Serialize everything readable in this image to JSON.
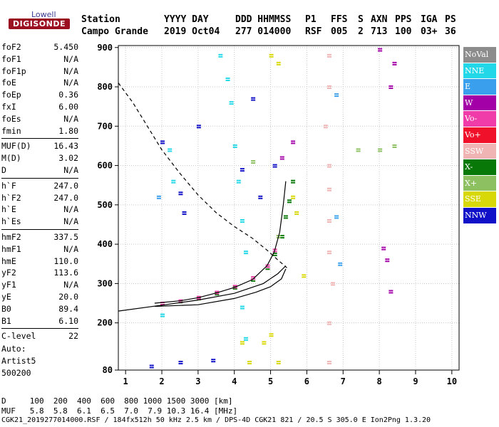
{
  "logo": {
    "top": "Lowell",
    "main": "DIGISONDE"
  },
  "header": {
    "labels": [
      "Station",
      "YYYY DAY",
      "DDD HHMMSS",
      "P1",
      "FFS",
      "S",
      "AXN",
      "PPS",
      "IGA",
      "PS"
    ],
    "values": [
      "Campo Grande",
      "2019 Oct04",
      "277 014000",
      "RSF",
      "005",
      "2",
      "713",
      "100",
      "03+",
      "36"
    ]
  },
  "params": [
    [
      {
        "k": "foF2",
        "v": "5.450"
      },
      {
        "k": "foF1",
        "v": "N/A"
      },
      {
        "k": "foF1p",
        "v": "N/A"
      },
      {
        "k": "foE",
        "v": "N/A"
      },
      {
        "k": "foEp",
        "v": "0.36"
      },
      {
        "k": "fxI",
        "v": "6.00"
      },
      {
        "k": "foEs",
        "v": "N/A"
      },
      {
        "k": "fmin",
        "v": "1.80"
      }
    ],
    [
      {
        "k": "MUF(D)",
        "v": "16.43"
      },
      {
        "k": "M(D)",
        "v": "3.02"
      },
      {
        "k": "D",
        "v": "N/A"
      }
    ],
    [
      {
        "k": "h`F",
        "v": "247.0"
      },
      {
        "k": "h`F2",
        "v": "247.0"
      },
      {
        "k": "h`E",
        "v": "N/A"
      },
      {
        "k": "h`Es",
        "v": "N/A"
      }
    ],
    [
      {
        "k": "hmF2",
        "v": "337.5"
      },
      {
        "k": "hmF1",
        "v": "N/A"
      },
      {
        "k": "hmE",
        "v": "110.0"
      },
      {
        "k": "yF2",
        "v": "113.6"
      },
      {
        "k": "yF1",
        "v": "N/A"
      },
      {
        "k": "yE",
        "v": "20.0"
      },
      {
        "k": "B0",
        "v": "89.4"
      },
      {
        "k": "B1",
        "v": "6.10"
      }
    ],
    [
      {
        "k": "C-level",
        "v": "22"
      }
    ]
  ],
  "auto": {
    "line1": "Auto:",
    "line2": "Artist5",
    "line3": "500200"
  },
  "legend": [
    {
      "label": "NoVal",
      "color": "#8c8c8c"
    },
    {
      "label": "NNE",
      "color": "#22d8e8"
    },
    {
      "label": "E",
      "color": "#3aa0ee"
    },
    {
      "label": "W",
      "color": "#a300a8"
    },
    {
      "label": "Vo-",
      "color": "#f03ca8"
    },
    {
      "label": "Vo+",
      "color": "#f0102a"
    },
    {
      "label": "SSW",
      "color": "#f0b4b4"
    },
    {
      "label": "X-",
      "color": "#087808"
    },
    {
      "label": "X+",
      "color": "#8cc060"
    },
    {
      "label": "SSE",
      "color": "#d8d808"
    },
    {
      "label": "NNW",
      "color": "#1010c8"
    }
  ],
  "bottom": {
    "line1": "D     100  200  400  600  800 1000 1500 3000 [km]",
    "line2": "MUF   5.8  5.8  6.1  6.5  7.0  7.9 10.3 16.4 [MHz]",
    "line3": "CGK21_2019277014000.RSF / 184fx512h 50 kHz 2.5 km / DPS-4D CGK21 821 / 20.5 S 305.0 E Ion2Png 1.3.20"
  },
  "chart_data": {
    "type": "scatter",
    "title": "",
    "xlabel": "",
    "ylabel": "",
    "xlim": [
      0.8,
      10.2
    ],
    "ylim": [
      80,
      905
    ],
    "x_ticks": [
      "1",
      "2",
      "3",
      "4",
      "5",
      "6",
      "7",
      "8",
      "9",
      "10"
    ],
    "y_ticks": [
      "80",
      "200",
      "300",
      "400",
      "500",
      "600",
      "700",
      "800",
      "900"
    ],
    "grid": true,
    "legend_position": "right",
    "series": [
      {
        "name": "X-",
        "points": [
          [
            2.0,
            250
          ],
          [
            2.5,
            255
          ],
          [
            3.0,
            263
          ],
          [
            3.5,
            275
          ],
          [
            4.0,
            290
          ],
          [
            4.5,
            310
          ],
          [
            4.9,
            340
          ],
          [
            5.1,
            375
          ],
          [
            5.3,
            420
          ],
          [
            5.4,
            470
          ],
          [
            5.5,
            510
          ],
          [
            5.6,
            560
          ]
        ]
      },
      {
        "name": "Vo-",
        "points": [
          [
            2.0,
            250
          ],
          [
            2.5,
            256
          ],
          [
            3.0,
            265
          ],
          [
            3.5,
            278
          ],
          [
            4.0,
            293
          ],
          [
            4.5,
            315
          ],
          [
            4.9,
            345
          ],
          [
            5.1,
            385
          ]
        ]
      },
      {
        "name": "SSE",
        "points": [
          [
            4.8,
            150
          ],
          [
            5.0,
            170
          ],
          [
            5.2,
            100
          ],
          [
            5.0,
            880
          ],
          [
            5.2,
            860
          ],
          [
            5.6,
            520
          ],
          [
            5.7,
            480
          ],
          [
            5.9,
            320
          ],
          [
            4.2,
            150
          ],
          [
            4.4,
            100
          ]
        ]
      },
      {
        "name": "NNE",
        "points": [
          [
            3.6,
            880
          ],
          [
            3.8,
            820
          ],
          [
            3.9,
            760
          ],
          [
            4.0,
            650
          ],
          [
            4.1,
            560
          ],
          [
            4.2,
            460
          ],
          [
            4.3,
            380
          ],
          [
            4.2,
            240
          ],
          [
            4.3,
            160
          ],
          [
            2.2,
            640
          ],
          [
            2.3,
            560
          ],
          [
            2.0,
            220
          ]
        ]
      },
      {
        "name": "SSW",
        "points": [
          [
            6.6,
            880
          ],
          [
            6.6,
            800
          ],
          [
            6.5,
            700
          ],
          [
            6.6,
            600
          ],
          [
            6.6,
            540
          ],
          [
            6.6,
            460
          ],
          [
            6.6,
            380
          ],
          [
            6.7,
            300
          ],
          [
            6.6,
            200
          ],
          [
            6.6,
            100
          ]
        ]
      },
      {
        "name": "NNW",
        "points": [
          [
            2.0,
            660
          ],
          [
            3.0,
            700
          ],
          [
            4.5,
            770
          ],
          [
            2.5,
            530
          ],
          [
            4.2,
            590
          ],
          [
            5.1,
            600
          ],
          [
            2.6,
            480
          ],
          [
            4.7,
            520
          ],
          [
            1.7,
            90
          ],
          [
            2.5,
            100
          ],
          [
            3.4,
            105
          ]
        ]
      },
      {
        "name": "W",
        "points": [
          [
            8.0,
            895
          ],
          [
            8.4,
            860
          ],
          [
            8.3,
            800
          ],
          [
            8.1,
            390
          ],
          [
            8.2,
            360
          ],
          [
            8.3,
            280
          ],
          [
            5.3,
            620
          ],
          [
            5.6,
            660
          ]
        ]
      },
      {
        "name": "E",
        "points": [
          [
            6.8,
            780
          ],
          [
            6.9,
            350
          ],
          [
            6.8,
            470
          ],
          [
            1.9,
            520
          ]
        ]
      },
      {
        "name": "X+",
        "points": [
          [
            8.0,
            640
          ],
          [
            8.4,
            650
          ],
          [
            7.4,
            640
          ],
          [
            5.2,
            420
          ],
          [
            4.5,
            610
          ]
        ]
      }
    ],
    "traces": [
      {
        "name": "h'F trace",
        "points": [
          [
            1.8,
            250
          ],
          [
            2.5,
            256
          ],
          [
            3.0,
            264
          ],
          [
            3.5,
            276
          ],
          [
            4.0,
            290
          ],
          [
            4.5,
            310
          ],
          [
            4.9,
            345
          ],
          [
            5.1,
            380
          ],
          [
            5.25,
            430
          ],
          [
            5.35,
            500
          ],
          [
            5.42,
            560
          ]
        ]
      },
      {
        "name": "true-height profile",
        "points": [
          [
            1.8,
            242
          ],
          [
            3.0,
            246
          ],
          [
            4.0,
            262
          ],
          [
            4.6,
            278
          ],
          [
            5.0,
            292
          ],
          [
            5.3,
            312
          ],
          [
            5.42,
            337
          ]
        ]
      },
      {
        "name": "topside",
        "points": [
          [
            0.8,
            230
          ],
          [
            2.0,
            245
          ],
          [
            3.0,
            258
          ],
          [
            4.0,
            275
          ],
          [
            4.8,
            300
          ],
          [
            5.2,
            325
          ],
          [
            5.42,
            345
          ]
        ]
      },
      {
        "name": "MUF dashed",
        "points": [
          [
            0.8,
            810
          ],
          [
            1.2,
            760
          ],
          [
            1.6,
            700
          ],
          [
            2.0,
            640
          ],
          [
            2.5,
            580
          ],
          [
            3.0,
            525
          ],
          [
            3.5,
            480
          ],
          [
            4.0,
            445
          ],
          [
            4.5,
            415
          ],
          [
            4.9,
            385
          ],
          [
            5.2,
            360
          ],
          [
            5.45,
            340
          ]
        ]
      }
    ]
  }
}
